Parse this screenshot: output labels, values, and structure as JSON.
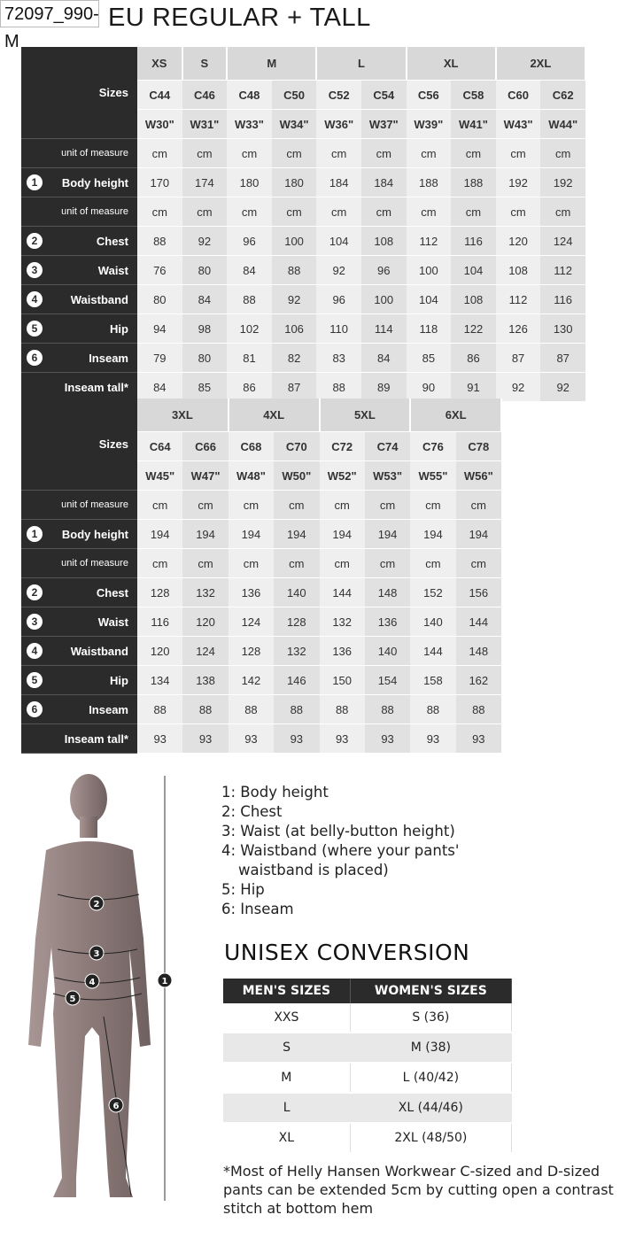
{
  "code_label": "72097_990-M",
  "title": "EU REGULAR + TALL",
  "tables": [
    {
      "groups": [
        {
          "label": "XS",
          "span": 1
        },
        {
          "label": "S",
          "span": 1
        },
        {
          "label": "M",
          "span": 2
        },
        {
          "label": "L",
          "span": 2
        },
        {
          "label": "XL",
          "span": 2
        },
        {
          "label": "2XL",
          "span": 2
        }
      ],
      "sizes_label": "Sizes",
      "c_sizes": [
        "C44",
        "C46",
        "C48",
        "C50",
        "C52",
        "C54",
        "C56",
        "C58",
        "C60",
        "C62"
      ],
      "w_sizes": [
        "W30\"",
        "W31\"",
        "W33\"",
        "W34\"",
        "W36\"",
        "W37\"",
        "W39\"",
        "W41\"",
        "W43\"",
        "W44\""
      ],
      "rows": [
        {
          "label": "unit of measure",
          "num": "",
          "values": [
            "cm",
            "cm",
            "cm",
            "cm",
            "cm",
            "cm",
            "cm",
            "cm",
            "cm",
            "cm"
          ]
        },
        {
          "label": "Body height",
          "num": "1",
          "values": [
            "170",
            "174",
            "180",
            "180",
            "184",
            "184",
            "188",
            "188",
            "192",
            "192"
          ]
        },
        {
          "label": "unit of measure",
          "num": "",
          "values": [
            "cm",
            "cm",
            "cm",
            "cm",
            "cm",
            "cm",
            "cm",
            "cm",
            "cm",
            "cm"
          ]
        },
        {
          "label": "Chest",
          "num": "2",
          "values": [
            "88",
            "92",
            "96",
            "100",
            "104",
            "108",
            "112",
            "116",
            "120",
            "124"
          ]
        },
        {
          "label": "Waist",
          "num": "3",
          "values": [
            "76",
            "80",
            "84",
            "88",
            "92",
            "96",
            "100",
            "104",
            "108",
            "112"
          ]
        },
        {
          "label": "Waistband",
          "num": "4",
          "values": [
            "80",
            "84",
            "88",
            "92",
            "96",
            "100",
            "104",
            "108",
            "112",
            "116"
          ]
        },
        {
          "label": "Hip",
          "num": "5",
          "values": [
            "94",
            "98",
            "102",
            "106",
            "110",
            "114",
            "118",
            "122",
            "126",
            "130"
          ]
        },
        {
          "label": "Inseam",
          "num": "6",
          "values": [
            "79",
            "80",
            "81",
            "82",
            "83",
            "84",
            "85",
            "86",
            "87",
            "87"
          ]
        },
        {
          "label": "Inseam tall*",
          "num": "",
          "values": [
            "84",
            "85",
            "86",
            "87",
            "88",
            "89",
            "90",
            "91",
            "92",
            "92"
          ]
        }
      ]
    },
    {
      "groups": [
        {
          "label": "3XL",
          "span": 2
        },
        {
          "label": "4XL",
          "span": 2
        },
        {
          "label": "5XL",
          "span": 2
        },
        {
          "label": "6XL",
          "span": 2
        }
      ],
      "sizes_label": "Sizes",
      "c_sizes": [
        "C64",
        "C66",
        "C68",
        "C70",
        "C72",
        "C74",
        "C76",
        "C78"
      ],
      "w_sizes": [
        "W45\"",
        "W47\"",
        "W48\"",
        "W50\"",
        "W52\"",
        "W53\"",
        "W55\"",
        "W56\""
      ],
      "rows": [
        {
          "label": "unit of measure",
          "num": "",
          "values": [
            "cm",
            "cm",
            "cm",
            "cm",
            "cm",
            "cm",
            "cm",
            "cm"
          ]
        },
        {
          "label": "Body height",
          "num": "1",
          "values": [
            "194",
            "194",
            "194",
            "194",
            "194",
            "194",
            "194",
            "194"
          ]
        },
        {
          "label": "unit of measure",
          "num": "",
          "values": [
            "cm",
            "cm",
            "cm",
            "cm",
            "cm",
            "cm",
            "cm",
            "cm"
          ]
        },
        {
          "label": "Chest",
          "num": "2",
          "values": [
            "128",
            "132",
            "136",
            "140",
            "144",
            "148",
            "152",
            "156"
          ]
        },
        {
          "label": "Waist",
          "num": "3",
          "values": [
            "116",
            "120",
            "124",
            "128",
            "132",
            "136",
            "140",
            "144"
          ]
        },
        {
          "label": "Waistband",
          "num": "4",
          "values": [
            "120",
            "124",
            "128",
            "132",
            "136",
            "140",
            "144",
            "148"
          ]
        },
        {
          "label": "Hip",
          "num": "5",
          "values": [
            "134",
            "138",
            "142",
            "146",
            "150",
            "154",
            "158",
            "162"
          ]
        },
        {
          "label": "Inseam",
          "num": "6",
          "values": [
            "88",
            "88",
            "88",
            "88",
            "88",
            "88",
            "88",
            "88"
          ]
        },
        {
          "label": "Inseam tall*",
          "num": "",
          "values": [
            "93",
            "93",
            "93",
            "93",
            "93",
            "93",
            "93",
            "93"
          ]
        }
      ]
    }
  ],
  "figure_markers": [
    "1",
    "2",
    "3",
    "4",
    "5",
    "6"
  ],
  "legend": [
    "1: Body height",
    "2: Chest",
    "3: Waist (at belly-button height)",
    "4: Waistband (where your pants'",
    "waistband is placed)",
    "5: Hip",
    "6: Inseam"
  ],
  "unisex": {
    "title": "UNISEX CONVERSION",
    "headers": [
      "MEN'S SIZES",
      "WOMEN'S SIZES"
    ],
    "rows": [
      [
        "XXS",
        "S (36)"
      ],
      [
        "S",
        "M (38)"
      ],
      [
        "M",
        "L (40/42)"
      ],
      [
        "L",
        "XL (44/46)"
      ],
      [
        "XL",
        "2XL (48/50)"
      ]
    ]
  },
  "footnote": "*Most of Helly Hansen Workwear C-sized and D-sized pants can be extended 5cm by cutting open a contrast stitch at bottom hem"
}
